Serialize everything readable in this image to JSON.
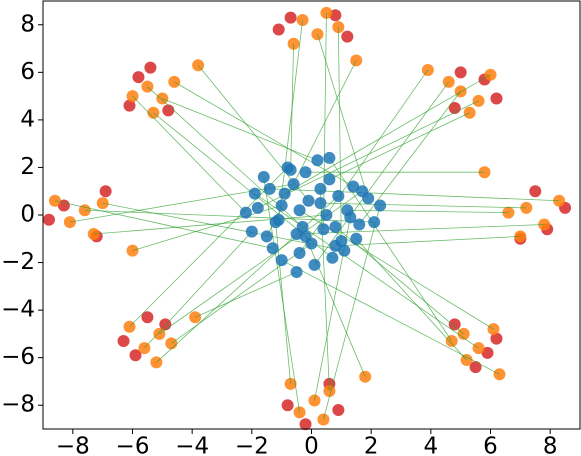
{
  "chart_data": {
    "type": "scatter",
    "xlim": [
      -9,
      9
    ],
    "ylim": [
      -9,
      9
    ],
    "xticks": [
      {
        "value": -8,
        "label": "−8"
      },
      {
        "value": -6,
        "label": "−6"
      },
      {
        "value": -4,
        "label": "−4"
      },
      {
        "value": -2,
        "label": "−2"
      },
      0,
      2,
      4,
      6,
      8
    ],
    "yticks": [
      {
        "value": -8,
        "label": "−8"
      },
      {
        "value": -6,
        "label": "−6"
      },
      {
        "value": -4,
        "label": "−4"
      },
      {
        "value": -2,
        "label": "−2"
      },
      0,
      2,
      4,
      6,
      8
    ],
    "link_color": "#2ca02c",
    "series": [
      {
        "color": "#d62728",
        "x": [
          7.9,
          7.0,
          8.5,
          7.5,
          5.8,
          4.8,
          6.2,
          5.0,
          -0.7,
          0.8,
          -1.1,
          1.2,
          -5.8,
          -4.8,
          -6.1,
          -5.4,
          -8.3,
          -7.2,
          -8.8,
          -6.9,
          -5.9,
          -4.9,
          -6.3,
          -5.5,
          -0.8,
          0.9,
          -0.2,
          0.6,
          5.9,
          4.8,
          6.2,
          5.5
        ],
        "values": [
          -0.6,
          -1.0,
          0.3,
          1.0,
          5.7,
          4.5,
          4.9,
          6.0,
          8.3,
          8.4,
          7.8,
          7.5,
          5.8,
          4.4,
          4.6,
          6.2,
          0.4,
          -0.9,
          -0.2,
          1.0,
          -5.9,
          -4.6,
          -5.3,
          -4.3,
          -8.0,
          -8.2,
          -8.8,
          -7.1,
          -5.8,
          -4.6,
          -5.2,
          -6.4
        ]
      },
      {
        "color": "#ff7f0e",
        "x": [
          7.2,
          7.8,
          6.6,
          8.3,
          7.0,
          5.8,
          5.0,
          5.6,
          4.6,
          6.0,
          5.3,
          3.9,
          0.2,
          -0.3,
          0.5,
          -0.6,
          0.9,
          1.5,
          -5.0,
          -5.5,
          -4.6,
          -6.0,
          -5.3,
          -3.8,
          -7.6,
          -8.1,
          -7.0,
          -8.6,
          -7.3,
          -6.0,
          -5.1,
          -5.6,
          -4.7,
          -6.1,
          -5.2,
          -3.9,
          0.1,
          -0.4,
          0.6,
          -0.7,
          0.4,
          1.8,
          5.1,
          5.6,
          4.7,
          6.1,
          5.2,
          6.3
        ],
        "values": [
          0.3,
          -0.4,
          0.1,
          0.6,
          -0.9,
          1.8,
          5.2,
          4.8,
          5.6,
          5.9,
          4.3,
          6.1,
          7.6,
          8.2,
          8.5,
          7.2,
          7.9,
          6.5,
          4.9,
          5.4,
          5.6,
          5.0,
          4.3,
          6.3,
          0.2,
          -0.3,
          0.5,
          0.6,
          -0.8,
          -1.5,
          -5.0,
          -5.6,
          -5.4,
          -4.7,
          -6.2,
          -4.3,
          -7.8,
          -8.3,
          -7.4,
          -7.1,
          -8.6,
          -6.8,
          -5.0,
          -5.6,
          -5.3,
          -4.8,
          -6.1,
          -6.7
        ]
      },
      {
        "color": "#1f77b4",
        "x": [
          0.3,
          -0.5,
          1.2,
          -1.4,
          0.8,
          -0.2,
          1.6,
          -1.8,
          0.1,
          -0.9,
          0.6,
          -0.4,
          1.9,
          -1.1,
          0.4,
          -0.7,
          1.0,
          -1.5,
          0.2,
          -0.3,
          1.4,
          -2.2,
          0.7,
          -0.1,
          2.1,
          -0.6,
          1.1,
          -1.3,
          0.5,
          -1.0,
          1.7,
          -2.0,
          0.0,
          -0.8,
          0.9,
          -0.5,
          1.3,
          -1.6,
          0.3,
          -1.2,
          2.3,
          -0.2,
          0.8,
          -1.9,
          0.6,
          -0.4,
          1.5,
          -1.0
        ],
        "values": [
          0.5,
          -0.8,
          0.2,
          1.1,
          -1.3,
          1.8,
          -0.4,
          0.3,
          -2.1,
          0.9,
          1.5,
          -1.6,
          0.7,
          -0.2,
          -0.6,
          1.9,
          -1.1,
          -0.9,
          2.3,
          -0.5,
          1.2,
          0.1,
          -1.8,
          0.6,
          -0.3,
          1.3,
          -1.5,
          -1.4,
          0.0,
          0.4,
          1.0,
          -0.7,
          -1.2,
          2.0,
          0.8,
          -2.4,
          -0.1,
          1.6,
          1.1,
          -0.3,
          0.4,
          -0.9,
          -0.5,
          0.9,
          2.4,
          0.2,
          -1.0,
          -1.9
        ]
      }
    ]
  }
}
